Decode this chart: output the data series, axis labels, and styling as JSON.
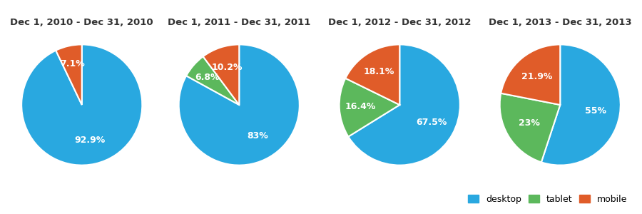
{
  "charts": [
    {
      "title": "Dec 1, 2010 - Dec 31, 2010",
      "slices": [
        {
          "label": "desktop",
          "value": 92.9,
          "color": "#29a8e0"
        },
        {
          "label": "tablet",
          "value": 0.0,
          "color": "#5cb85c"
        },
        {
          "label": "mobile",
          "value": 7.1,
          "color": "#e05c29"
        }
      ]
    },
    {
      "title": "Dec 1, 2011 - Dec 31, 2011",
      "slices": [
        {
          "label": "desktop",
          "value": 83.0,
          "color": "#29a8e0"
        },
        {
          "label": "tablet",
          "value": 6.8,
          "color": "#5cb85c"
        },
        {
          "label": "mobile",
          "value": 10.2,
          "color": "#e05c29"
        }
      ]
    },
    {
      "title": "Dec 1, 2012 - Dec 31, 2012",
      "slices": [
        {
          "label": "desktop",
          "value": 67.5,
          "color": "#29a8e0"
        },
        {
          "label": "tablet",
          "value": 16.4,
          "color": "#5cb85c"
        },
        {
          "label": "mobile",
          "value": 18.1,
          "color": "#e05c29"
        }
      ]
    },
    {
      "title": "Dec 1, 2013 - Dec 31, 2013",
      "slices": [
        {
          "label": "desktop",
          "value": 55.0,
          "color": "#29a8e0"
        },
        {
          "label": "tablet",
          "value": 23.0,
          "color": "#5cb85c"
        },
        {
          "label": "mobile",
          "value": 21.9,
          "color": "#e05c29"
        }
      ]
    }
  ],
  "legend_labels": [
    "desktop",
    "tablet",
    "mobile"
  ],
  "legend_colors": [
    "#29a8e0",
    "#5cb85c",
    "#e05c29"
  ],
  "background_color": "#ffffff",
  "label_color": "#ffffff",
  "title_color": "#333333",
  "title_fontsize": 9.5,
  "label_fontsize": 9,
  "startangle": 90
}
